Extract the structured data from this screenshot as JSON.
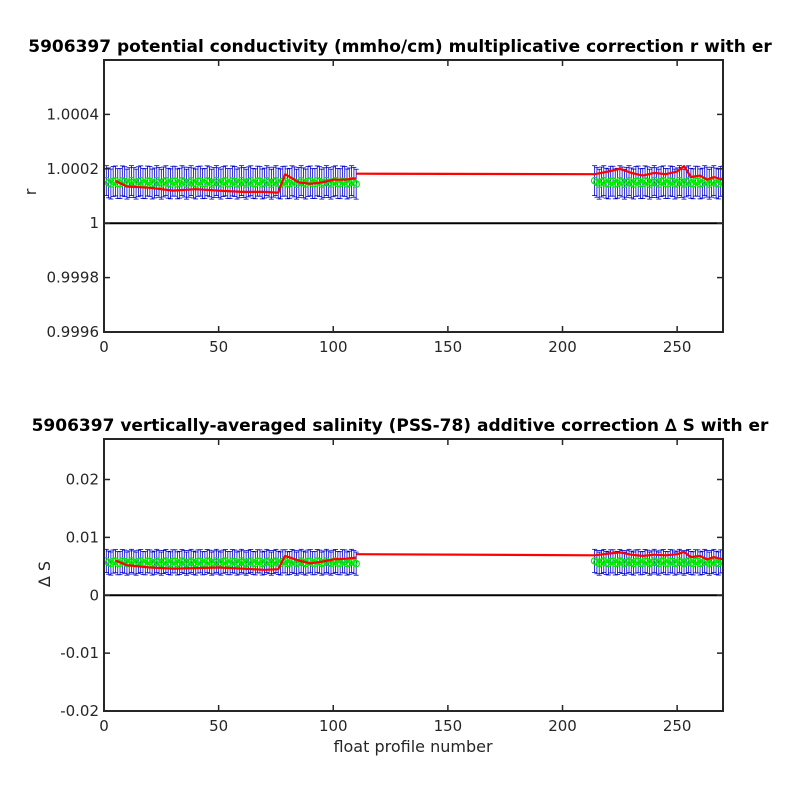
{
  "colors": {
    "errorbar": "#0000cc",
    "raw": "#00ee00",
    "fit": "#ff0000",
    "zero_line": "#000000",
    "axes": "#262626"
  },
  "chart_data": [
    {
      "type": "line",
      "title": "5906397 potential conductivity (mmho/cm) multiplicative correction r with er",
      "xlabel": "",
      "ylabel": "r",
      "xlim": [
        0,
        270
      ],
      "ylim": [
        0.9996,
        1.0006
      ],
      "x_ticks": [
        0,
        50,
        100,
        150,
        200,
        250
      ],
      "x_tick_labels": [
        "0",
        "50",
        "100",
        "150",
        "200",
        "250"
      ],
      "y_ticks": [
        0.9996,
        0.9998,
        1.0,
        1.0002,
        1.0004
      ],
      "y_tick_labels": [
        "0.9996",
        "0.9998",
        "1",
        "1.0002",
        "1.0004"
      ],
      "grid": false,
      "reference_line": 1.0,
      "segments": [
        {
          "x_range": [
            1,
            110
          ],
          "raw_value": 1.00015,
          "error": 5.5e-05,
          "fit": [
            [
              5,
              1.000155
            ],
            [
              10,
              1.000135
            ],
            [
              20,
              1.00013
            ],
            [
              30,
              1.00012
            ],
            [
              40,
              1.000125
            ],
            [
              50,
              1.00012
            ],
            [
              60,
              1.000115
            ],
            [
              70,
              1.000115
            ],
            [
              76,
              1.000112
            ],
            [
              79,
              1.00018
            ],
            [
              85,
              1.00015
            ],
            [
              90,
              1.000145
            ],
            [
              95,
              1.00015
            ],
            [
              100,
              1.00016
            ],
            [
              105,
              1.00016
            ],
            [
              110,
              1.000165
            ]
          ]
        },
        {
          "x_range": [
            110,
            214
          ],
          "fit": [
            [
              110,
              1.000182
            ],
            [
              214,
              1.00018
            ]
          ]
        },
        {
          "x_range": [
            214,
            270
          ],
          "raw_value": 1.00015,
          "error": 5.5e-05,
          "fit": [
            [
              214,
              1.00018
            ],
            [
              220,
              1.00019
            ],
            [
              225,
              1.0002
            ],
            [
              230,
              1.000185
            ],
            [
              235,
              1.000175
            ],
            [
              240,
              1.000185
            ],
            [
              245,
              1.00018
            ],
            [
              250,
              1.00019
            ],
            [
              253,
              1.00021
            ],
            [
              256,
              1.00017
            ],
            [
              260,
              1.000175
            ],
            [
              263,
              1.00016
            ],
            [
              266,
              1.00017
            ],
            [
              270,
              1.00016
            ]
          ]
        }
      ]
    },
    {
      "type": "line",
      "title": "5906397 vertically-averaged salinity (PSS-78) additive correction ∆ S with er",
      "xlabel": "float profile number",
      "ylabel": "∆ S",
      "xlim": [
        0,
        270
      ],
      "ylim": [
        -0.02,
        0.027
      ],
      "x_ticks": [
        0,
        50,
        100,
        150,
        200,
        250
      ],
      "x_tick_labels": [
        "0",
        "50",
        "100",
        "150",
        "200",
        "250"
      ],
      "y_ticks": [
        -0.02,
        -0.01,
        0,
        0.01,
        0.02
      ],
      "y_tick_labels": [
        "-0.02",
        "-0.01",
        "0",
        "0.01",
        "0.02"
      ],
      "grid": false,
      "reference_line": 0,
      "segments": [
        {
          "x_range": [
            1,
            110
          ],
          "raw_value": 0.0057,
          "error": 0.002,
          "fit": [
            [
              5,
              0.006
            ],
            [
              10,
              0.0052
            ],
            [
              20,
              0.0048
            ],
            [
              30,
              0.0046
            ],
            [
              40,
              0.0047
            ],
            [
              50,
              0.0048
            ],
            [
              60,
              0.0046
            ],
            [
              70,
              0.0044
            ],
            [
              76,
              0.0045
            ],
            [
              79,
              0.0068
            ],
            [
              85,
              0.006
            ],
            [
              90,
              0.0055
            ],
            [
              95,
              0.0058
            ],
            [
              100,
              0.0062
            ],
            [
              105,
              0.0063
            ],
            [
              110,
              0.0065
            ]
          ]
        },
        {
          "x_range": [
            110,
            214
          ],
          "fit": [
            [
              110,
              0.0071
            ],
            [
              214,
              0.0069
            ]
          ]
        },
        {
          "x_range": [
            214,
            270
          ],
          "raw_value": 0.0057,
          "error": 0.002,
          "fit": [
            [
              214,
              0.0069
            ],
            [
              220,
              0.0072
            ],
            [
              225,
              0.0074
            ],
            [
              230,
              0.007
            ],
            [
              235,
              0.0068
            ],
            [
              240,
              0.007
            ],
            [
              245,
              0.0069
            ],
            [
              250,
              0.0071
            ],
            [
              253,
              0.0075
            ],
            [
              256,
              0.0066
            ],
            [
              260,
              0.0068
            ],
            [
              263,
              0.0062
            ],
            [
              266,
              0.0066
            ],
            [
              270,
              0.0062
            ]
          ]
        }
      ]
    }
  ]
}
